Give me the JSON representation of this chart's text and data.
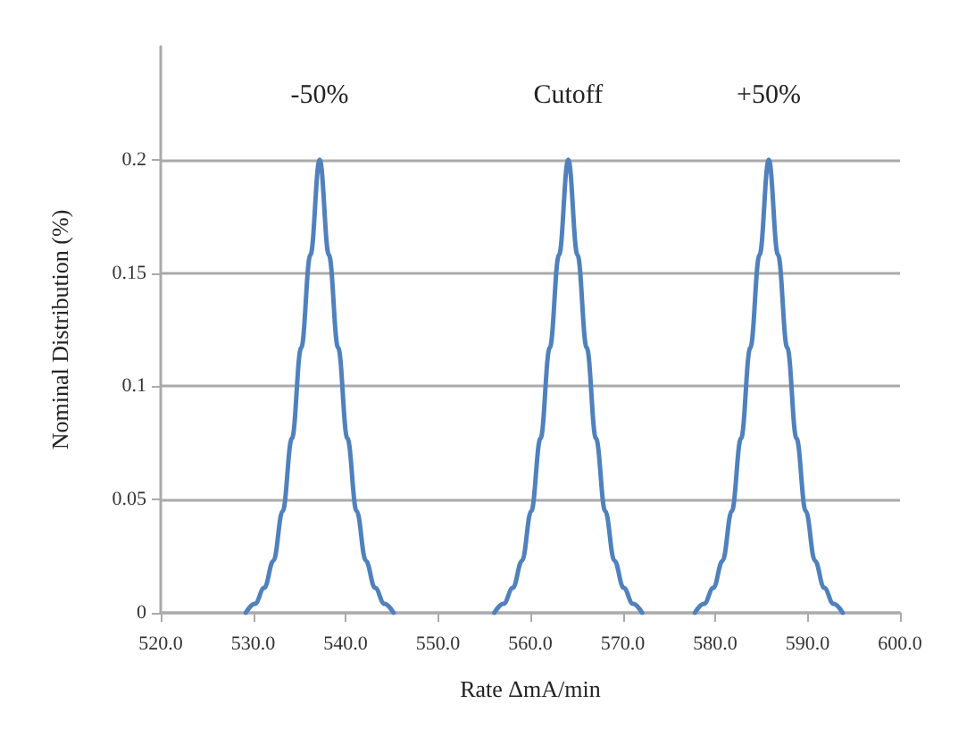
{
  "chart_data": {
    "type": "line",
    "xlabel": "Rate ΔmA/min",
    "ylabel": "Nominal Distribution (%)",
    "series": [
      {
        "color": "#4f81bd",
        "x": [
          529.2,
          530.2,
          531.2,
          532.2,
          533.2,
          534.2,
          535.2,
          536.2,
          537.2,
          538.2,
          539.2,
          540.2,
          541.2,
          542.2,
          543.2,
          544.2,
          545.2
        ],
        "values": [
          0,
          0.004,
          0.011,
          0.023,
          0.045,
          0.077,
          0.117,
          0.158,
          0.2,
          0.158,
          0.117,
          0.077,
          0.045,
          0.023,
          0.011,
          0.004,
          0
        ]
      },
      {
        "color": "#4f81bd",
        "x": [
          556.1,
          557.1,
          558.1,
          559.1,
          560.1,
          561.1,
          562.1,
          563.1,
          564.1,
          565.1,
          566.1,
          567.1,
          568.1,
          569.1,
          570.1,
          571.1,
          572.1
        ],
        "values": [
          0,
          0.004,
          0.011,
          0.023,
          0.045,
          0.077,
          0.117,
          0.158,
          0.2,
          0.158,
          0.117,
          0.077,
          0.045,
          0.023,
          0.011,
          0.004,
          0
        ]
      },
      {
        "color": "#4f81bd",
        "x": [
          577.8,
          578.8,
          579.8,
          580.8,
          581.8,
          582.8,
          583.8,
          584.8,
          585.8,
          586.8,
          587.8,
          588.8,
          589.8,
          590.8,
          591.8,
          592.8,
          593.8
        ],
        "values": [
          0,
          0.004,
          0.011,
          0.023,
          0.045,
          0.077,
          0.117,
          0.158,
          0.2,
          0.158,
          0.117,
          0.077,
          0.045,
          0.023,
          0.011,
          0.004,
          0
        ]
      }
    ],
    "xlim": [
      520,
      600
    ],
    "xticks": [
      {
        "value": 520,
        "label": "520.0"
      },
      {
        "value": 530,
        "label": "530.0"
      },
      {
        "value": 540,
        "label": "540.0"
      },
      {
        "value": 550,
        "label": "550.0"
      },
      {
        "value": 560,
        "label": "560.0"
      },
      {
        "value": 570,
        "label": "570.0"
      },
      {
        "value": 580,
        "label": "580.0"
      },
      {
        "value": 590,
        "label": "590.0"
      },
      {
        "value": 600,
        "label": "600.0"
      }
    ],
    "ylim": [
      0,
      0.25
    ],
    "yticks": [
      0,
      0.05,
      0.1,
      0.15,
      0.2
    ],
    "grid": "y",
    "marker": "none",
    "line_style": "solid",
    "annotations": [
      {
        "text": "-50%",
        "x": 537.2,
        "y": 0.2
      },
      {
        "text": "Cutoff",
        "x": 564.1,
        "y": 0.2
      },
      {
        "text": "+50%",
        "x": 585.8,
        "y": 0.2
      }
    ]
  }
}
